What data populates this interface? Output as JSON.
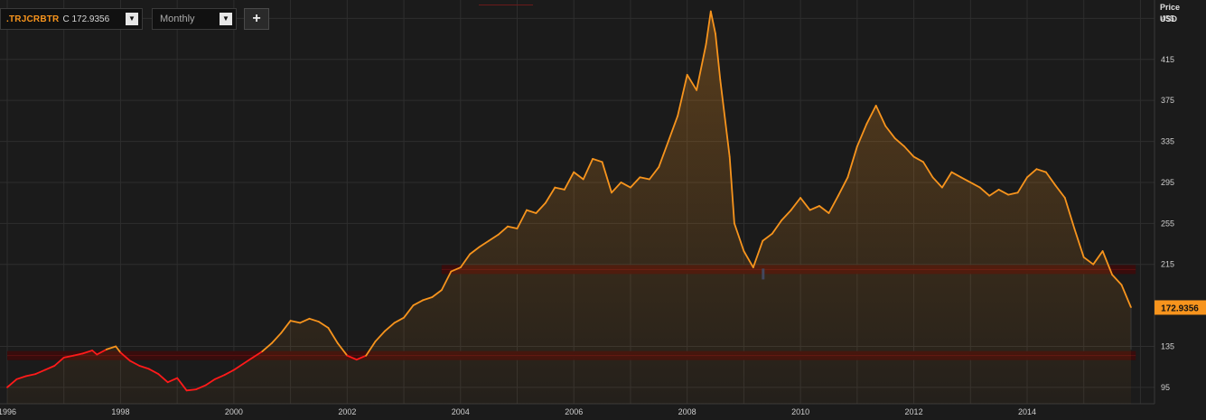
{
  "toolbar": {
    "symbol": ".TRJCRBTR",
    "close_text": "C 172.9356",
    "dropdown_glyph": "▼",
    "period": "Monthly",
    "add_glyph": "+"
  },
  "axis_header": {
    "line1": "Price",
    "line2": "USD"
  },
  "colors": {
    "line": "#f7941d",
    "below_line": "#ff1a1a",
    "band": "#3a0c0c",
    "last_tag": "#f7941d"
  },
  "chart_data": {
    "type": "area",
    "ylim": [
      79,
      473
    ],
    "y_ticks": [
      95,
      135,
      215,
      255,
      295,
      335,
      375,
      415,
      455
    ],
    "x_tick_labels": [
      "1996",
      "1998",
      "2000",
      "2002",
      "2004",
      "2006",
      "2008",
      "2010",
      "2012",
      "2014"
    ],
    "x_range": [
      "1996-01",
      "2015-11"
    ],
    "last_value_label": "172.9356",
    "last_value": 172.9,
    "reference_bands": [
      {
        "value": 126,
        "start": "1996-01",
        "end": "2015-12"
      },
      {
        "value": 210,
        "start": "2003-09",
        "end": "2015-12"
      }
    ],
    "series": [
      {
        "points": [
          [
            "1996-01",
            95
          ],
          [
            "1996-03",
            103
          ],
          [
            "1996-05",
            106
          ],
          [
            "1996-07",
            108
          ],
          [
            "1996-09",
            112
          ],
          [
            "1996-11",
            116
          ],
          [
            "1997-01",
            124
          ],
          [
            "1997-03",
            126
          ],
          [
            "1997-05",
            128
          ],
          [
            "1997-07",
            131
          ],
          [
            "1997-08",
            127
          ],
          [
            "1997-10",
            132
          ],
          [
            "1997-12",
            135
          ],
          [
            "1998-01",
            129
          ],
          [
            "1998-03",
            121
          ],
          [
            "1998-05",
            116
          ],
          [
            "1998-07",
            113
          ],
          [
            "1998-09",
            108
          ],
          [
            "1998-11",
            100
          ],
          [
            "1999-01",
            104
          ],
          [
            "1999-03",
            92
          ],
          [
            "1999-05",
            93
          ],
          [
            "1999-07",
            97
          ],
          [
            "1999-09",
            103
          ],
          [
            "1999-11",
            107
          ],
          [
            "2000-01",
            112
          ],
          [
            "2000-03",
            118
          ],
          [
            "2000-05",
            124
          ],
          [
            "2000-07",
            130
          ],
          [
            "2000-09",
            138
          ],
          [
            "2000-11",
            148
          ],
          [
            "2001-01",
            160
          ],
          [
            "2001-03",
            158
          ],
          [
            "2001-05",
            162
          ],
          [
            "2001-07",
            159
          ],
          [
            "2001-09",
            153
          ],
          [
            "2001-11",
            138
          ],
          [
            "2002-01",
            126
          ],
          [
            "2002-03",
            122
          ],
          [
            "2002-05",
            126
          ],
          [
            "2002-07",
            140
          ],
          [
            "2002-09",
            150
          ],
          [
            "2002-11",
            158
          ],
          [
            "2003-01",
            163
          ],
          [
            "2003-03",
            175
          ],
          [
            "2003-05",
            180
          ],
          [
            "2003-07",
            183
          ],
          [
            "2003-09",
            190
          ],
          [
            "2003-11",
            208
          ],
          [
            "2004-01",
            212
          ],
          [
            "2004-03",
            225
          ],
          [
            "2004-05",
            232
          ],
          [
            "2004-07",
            238
          ],
          [
            "2004-09",
            244
          ],
          [
            "2004-11",
            252
          ],
          [
            "2005-01",
            250
          ],
          [
            "2005-03",
            268
          ],
          [
            "2005-05",
            265
          ],
          [
            "2005-07",
            275
          ],
          [
            "2005-09",
            290
          ],
          [
            "2005-11",
            288
          ],
          [
            "2006-01",
            305
          ],
          [
            "2006-03",
            298
          ],
          [
            "2006-05",
            318
          ],
          [
            "2006-07",
            315
          ],
          [
            "2006-09",
            285
          ],
          [
            "2006-11",
            295
          ],
          [
            "2007-01",
            290
          ],
          [
            "2007-03",
            300
          ],
          [
            "2007-05",
            298
          ],
          [
            "2007-07",
            310
          ],
          [
            "2007-09",
            335
          ],
          [
            "2007-11",
            360
          ],
          [
            "2008-01",
            400
          ],
          [
            "2008-03",
            385
          ],
          [
            "2008-05",
            430
          ],
          [
            "2008-06",
            462
          ],
          [
            "2008-07",
            440
          ],
          [
            "2008-08",
            395
          ],
          [
            "2008-10",
            320
          ],
          [
            "2008-11",
            255
          ],
          [
            "2009-01",
            228
          ],
          [
            "2009-03",
            212
          ],
          [
            "2009-05",
            238
          ],
          [
            "2009-07",
            245
          ],
          [
            "2009-09",
            258
          ],
          [
            "2009-11",
            268
          ],
          [
            "2010-01",
            280
          ],
          [
            "2010-03",
            268
          ],
          [
            "2010-05",
            272
          ],
          [
            "2010-07",
            265
          ],
          [
            "2010-09",
            282
          ],
          [
            "2010-11",
            300
          ],
          [
            "2011-01",
            330
          ],
          [
            "2011-03",
            352
          ],
          [
            "2011-05",
            370
          ],
          [
            "2011-07",
            350
          ],
          [
            "2011-09",
            338
          ],
          [
            "2011-11",
            330
          ],
          [
            "2012-01",
            320
          ],
          [
            "2012-03",
            315
          ],
          [
            "2012-05",
            300
          ],
          [
            "2012-07",
            290
          ],
          [
            "2012-09",
            305
          ],
          [
            "2012-11",
            300
          ],
          [
            "2013-01",
            295
          ],
          [
            "2013-03",
            290
          ],
          [
            "2013-05",
            282
          ],
          [
            "2013-07",
            288
          ],
          [
            "2013-09",
            283
          ],
          [
            "2013-11",
            285
          ],
          [
            "2014-01",
            300
          ],
          [
            "2014-03",
            308
          ],
          [
            "2014-05",
            305
          ],
          [
            "2014-07",
            292
          ],
          [
            "2014-09",
            280
          ],
          [
            "2014-11",
            250
          ],
          [
            "2015-01",
            222
          ],
          [
            "2015-03",
            215
          ],
          [
            "2015-05",
            228
          ],
          [
            "2015-07",
            205
          ],
          [
            "2015-09",
            195
          ],
          [
            "2015-11",
            173
          ]
        ]
      }
    ]
  }
}
